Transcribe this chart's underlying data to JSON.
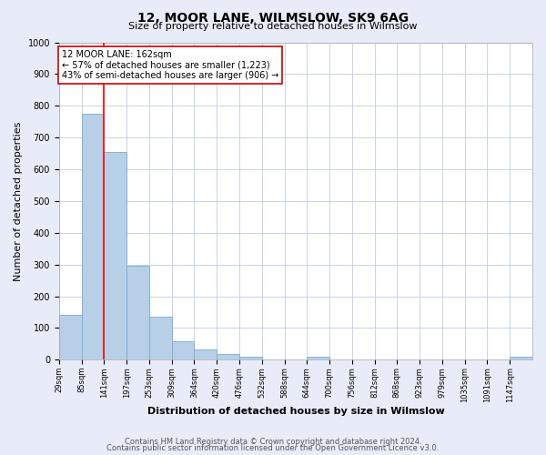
{
  "title": "12, MOOR LANE, WILMSLOW, SK9 6AG",
  "subtitle": "Size of property relative to detached houses in Wilmslow",
  "xlabel": "Distribution of detached houses by size in Wilmslow",
  "ylabel": "Number of detached properties",
  "bar_labels": [
    "29sqm",
    "85sqm",
    "141sqm",
    "197sqm",
    "253sqm",
    "309sqm",
    "364sqm",
    "420sqm",
    "476sqm",
    "532sqm",
    "588sqm",
    "644sqm",
    "700sqm",
    "756sqm",
    "812sqm",
    "868sqm",
    "923sqm",
    "979sqm",
    "1035sqm",
    "1091sqm",
    "1147sqm"
  ],
  "bar_values": [
    140,
    775,
    655,
    295,
    135,
    57,
    33,
    18,
    10,
    0,
    0,
    10,
    0,
    0,
    0,
    0,
    0,
    0,
    0,
    0,
    10
  ],
  "bar_color": "#b8cfe8",
  "bar_edge_color": "#7aaad0",
  "vline_x": 2,
  "vline_color": "red",
  "annotation_title": "12 MOOR LANE: 162sqm",
  "annotation_line1": "← 57% of detached houses are smaller (1,223)",
  "annotation_line2": "43% of semi-detached houses are larger (906) →",
  "annotation_box_facecolor": "white",
  "annotation_box_edgecolor": "#cc0000",
  "ylim": [
    0,
    1000
  ],
  "yticks": [
    0,
    100,
    200,
    300,
    400,
    500,
    600,
    700,
    800,
    900,
    1000
  ],
  "footer_line1": "Contains HM Land Registry data © Crown copyright and database right 2024.",
  "footer_line2": "Contains public sector information licensed under the Open Government Licence v3.0.",
  "background_color": "#e8ecf8",
  "plot_background": "#ffffff",
  "grid_color": "#c0cce0",
  "title_fontsize": 10,
  "subtitle_fontsize": 8,
  "ylabel_fontsize": 8,
  "xlabel_fontsize": 8,
  "tick_fontsize": 6,
  "annotation_fontsize": 7,
  "footer_fontsize": 6
}
